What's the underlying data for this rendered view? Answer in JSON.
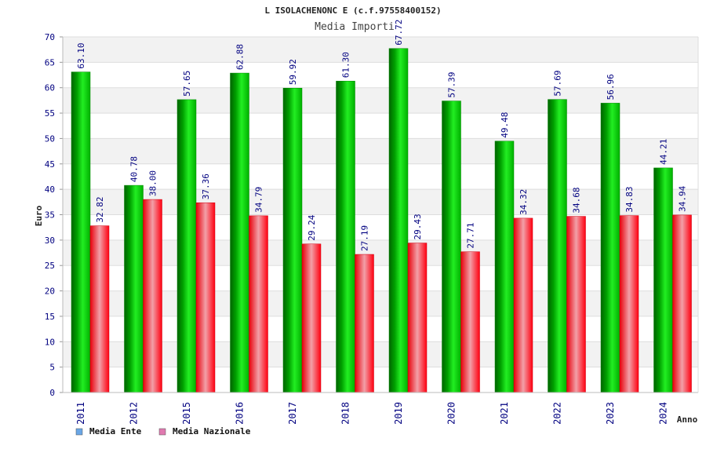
{
  "chart_data": {
    "type": "bar",
    "title": "L ISOLACHENONC E (c.f.97558400152)",
    "subtitle": "Media Importi",
    "xlabel": "Anno",
    "ylabel": "Euro",
    "ylim": [
      0,
      70
    ],
    "yticks": [
      0,
      5,
      10,
      15,
      20,
      25,
      30,
      35,
      40,
      45,
      50,
      55,
      60,
      65,
      70
    ],
    "grid": true,
    "legend_position": "bottom-left",
    "categories": [
      "2011",
      "2012",
      "2015",
      "2016",
      "2017",
      "2018",
      "2019",
      "2020",
      "2021",
      "2022",
      "2023",
      "2024"
    ],
    "series": [
      {
        "name": "Media Ente",
        "color": "#00c800",
        "legend_color": "#6aa6e6",
        "values": [
          63.1,
          40.78,
          57.65,
          62.88,
          59.92,
          61.3,
          67.72,
          57.39,
          49.48,
          57.69,
          56.96,
          44.21
        ],
        "labels": [
          "63.10",
          "40.78",
          "57.65",
          "62.88",
          "59.92",
          "61.30",
          "67.72",
          "57.39",
          "49.48",
          "57.69",
          "56.96",
          "44.21"
        ]
      },
      {
        "name": "Media Nazionale",
        "color": "#ff0010",
        "legend_color": "#e07ab0",
        "values": [
          32.82,
          38.0,
          37.36,
          34.79,
          29.24,
          27.19,
          29.43,
          27.71,
          34.32,
          34.68,
          34.83,
          34.94
        ],
        "labels": [
          "32.82",
          "38.00",
          "37.36",
          "34.79",
          "29.24",
          "27.19",
          "29.43",
          "27.71",
          "34.32",
          "34.68",
          "34.83",
          "34.94"
        ]
      }
    ]
  }
}
